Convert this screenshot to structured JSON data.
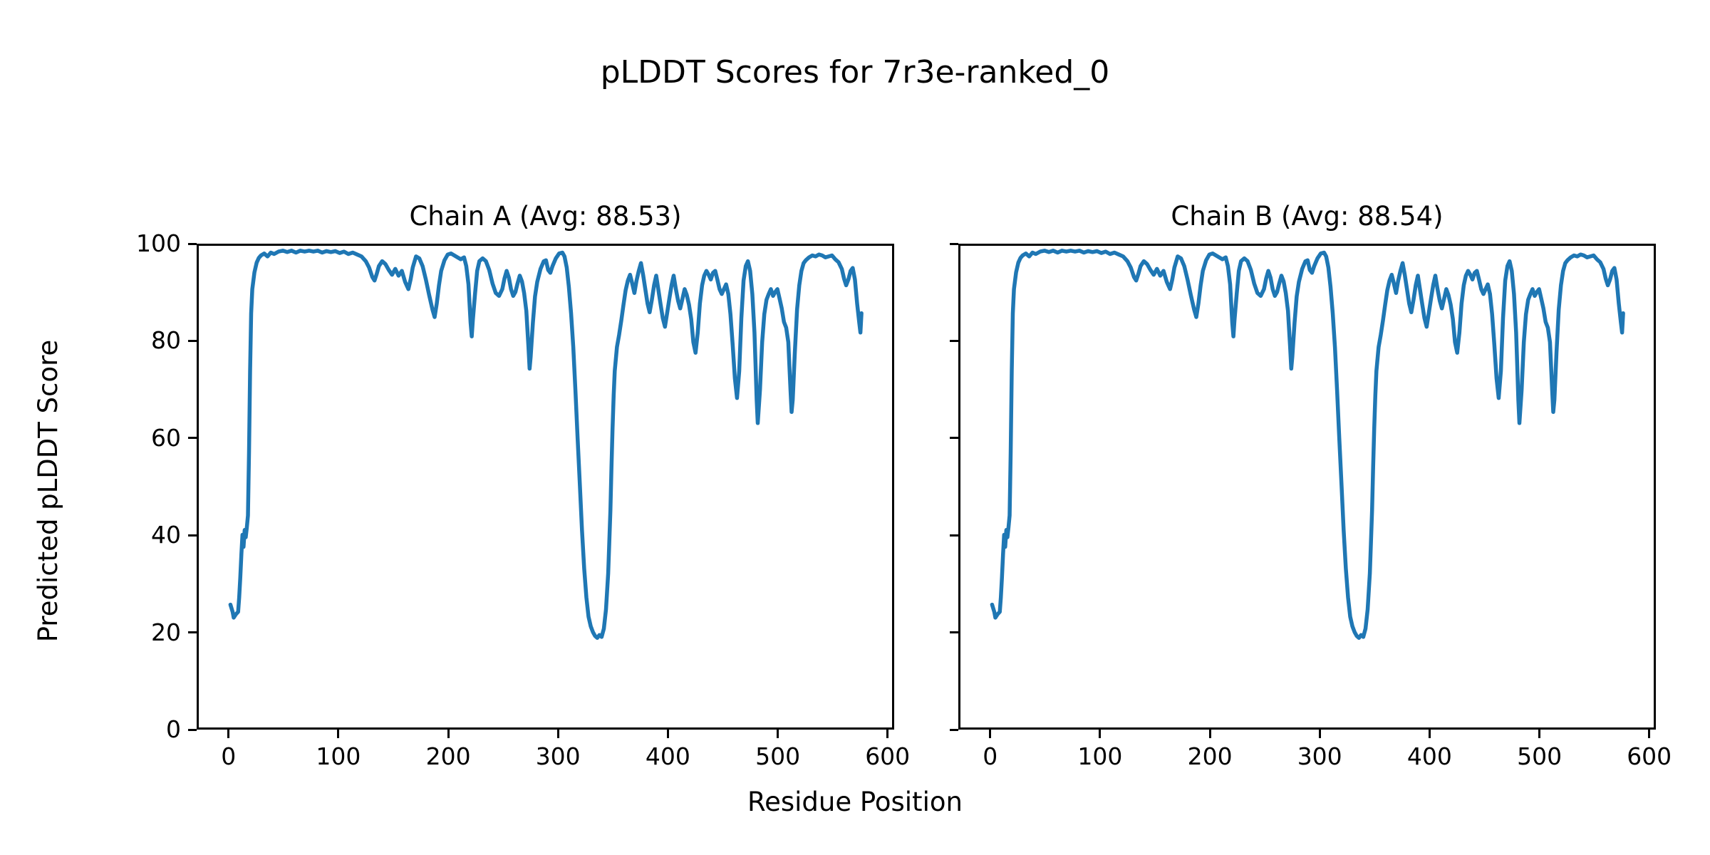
{
  "figure": {
    "title": "pLDDT Scores for 7r3e-ranked_0",
    "background_color": "#ffffff",
    "text_color": "#000000"
  },
  "chart_data": {
    "type": "line",
    "title": "pLDDT Scores for 7r3e-ranked_0",
    "xlabel": "Residue Position",
    "ylabel": "Predicted pLDDT Score",
    "xticks": [
      0,
      100,
      200,
      300,
      400,
      500,
      600
    ],
    "yticks": [
      0,
      20,
      40,
      60,
      80,
      100
    ],
    "xlim": [
      -29,
      606
    ],
    "ylim": [
      0,
      100
    ],
    "grid": false,
    "legend": "none",
    "line_color": "#1f77b4",
    "subplots": [
      {
        "title": "Chain A (Avg: 88.53)",
        "series_name": "Chain A",
        "avg": 88.53
      },
      {
        "title": "Chain B (Avg: 88.54)",
        "series_name": "Chain B",
        "avg": 88.54
      }
    ],
    "note_both_chains_identical_trace": true,
    "points": [
      [
        0,
        25.5
      ],
      [
        2,
        24
      ],
      [
        3,
        22.8
      ],
      [
        5,
        23.5
      ],
      [
        7,
        24
      ],
      [
        8,
        27
      ],
      [
        9,
        31
      ],
      [
        10,
        36
      ],
      [
        11,
        40
      ],
      [
        12,
        37.5
      ],
      [
        13,
        41
      ],
      [
        14,
        39.5
      ],
      [
        15,
        41.5
      ],
      [
        16,
        44
      ],
      [
        17,
        57
      ],
      [
        18,
        74
      ],
      [
        19,
        86
      ],
      [
        20,
        91
      ],
      [
        22,
        94.5
      ],
      [
        24,
        96.5
      ],
      [
        26,
        97.5
      ],
      [
        28,
        98
      ],
      [
        31,
        98.4
      ],
      [
        34,
        97.8
      ],
      [
        37,
        98.6
      ],
      [
        40,
        98.3
      ],
      [
        44,
        98.8
      ],
      [
        48,
        99
      ],
      [
        52,
        98.7
      ],
      [
        56,
        99
      ],
      [
        60,
        98.6
      ],
      [
        64,
        99
      ],
      [
        68,
        98.8
      ],
      [
        72,
        99
      ],
      [
        76,
        98.8
      ],
      [
        80,
        99
      ],
      [
        84,
        98.6
      ],
      [
        88,
        98.9
      ],
      [
        92,
        98.7
      ],
      [
        96,
        98.9
      ],
      [
        100,
        98.5
      ],
      [
        104,
        98.8
      ],
      [
        108,
        98.3
      ],
      [
        112,
        98.6
      ],
      [
        116,
        98.2
      ],
      [
        120,
        97.8
      ],
      [
        124,
        96.8
      ],
      [
        127,
        95.5
      ],
      [
        130,
        93.5
      ],
      [
        132,
        92.8
      ],
      [
        134,
        94.2
      ],
      [
        136,
        95.8
      ],
      [
        139,
        96.8
      ],
      [
        142,
        96.2
      ],
      [
        145,
        95
      ],
      [
        148,
        94
      ],
      [
        151,
        95.2
      ],
      [
        154,
        93.8
      ],
      [
        157,
        94.8
      ],
      [
        160,
        92.5
      ],
      [
        163,
        91
      ],
      [
        165,
        93
      ],
      [
        167,
        95.5
      ],
      [
        170,
        97.8
      ],
      [
        173,
        97.4
      ],
      [
        176,
        95.8
      ],
      [
        179,
        93
      ],
      [
        182,
        89.8
      ],
      [
        185,
        86.8
      ],
      [
        187,
        85.2
      ],
      [
        189,
        88
      ],
      [
        191,
        91.8
      ],
      [
        193,
        94.8
      ],
      [
        196,
        97
      ],
      [
        199,
        98.2
      ],
      [
        202,
        98.4
      ],
      [
        205,
        98
      ],
      [
        208,
        97.6
      ],
      [
        211,
        97.2
      ],
      [
        214,
        97.6
      ],
      [
        216,
        95.8
      ],
      [
        218,
        92
      ],
      [
        220,
        84
      ],
      [
        221,
        81.2
      ],
      [
        222,
        84.5
      ],
      [
        224,
        90
      ],
      [
        226,
        94.8
      ],
      [
        228,
        96.8
      ],
      [
        231,
        97.4
      ],
      [
        234,
        96.8
      ],
      [
        237,
        95
      ],
      [
        240,
        92.2
      ],
      [
        243,
        90.2
      ],
      [
        246,
        89.6
      ],
      [
        249,
        91
      ],
      [
        251,
        93.2
      ],
      [
        253,
        94.8
      ],
      [
        255,
        93.4
      ],
      [
        257,
        91
      ],
      [
        259,
        89.6
      ],
      [
        261,
        90.4
      ],
      [
        263,
        92.2
      ],
      [
        265,
        93.8
      ],
      [
        267,
        92.6
      ],
      [
        269,
        90.2
      ],
      [
        271,
        86.5
      ],
      [
        273,
        79
      ],
      [
        274,
        74.5
      ],
      [
        275,
        77
      ],
      [
        277,
        84
      ],
      [
        279,
        89.5
      ],
      [
        281,
        92.5
      ],
      [
        284,
        95.2
      ],
      [
        287,
        96.8
      ],
      [
        289,
        97
      ],
      [
        291,
        95
      ],
      [
        293,
        94.4
      ],
      [
        295,
        95.8
      ],
      [
        298,
        97.4
      ],
      [
        301,
        98.4
      ],
      [
        304,
        98.6
      ],
      [
        306,
        97.8
      ],
      [
        308,
        95.5
      ],
      [
        310,
        91.5
      ],
      [
        312,
        86
      ],
      [
        314,
        79
      ],
      [
        316,
        70
      ],
      [
        318,
        60
      ],
      [
        320,
        50.5
      ],
      [
        322,
        41
      ],
      [
        324,
        33
      ],
      [
        326,
        27
      ],
      [
        328,
        23
      ],
      [
        330,
        21
      ],
      [
        332,
        19.8
      ],
      [
        334,
        19
      ],
      [
        336,
        18.6
      ],
      [
        338,
        19.2
      ],
      [
        340,
        18.8
      ],
      [
        342,
        20.5
      ],
      [
        344,
        24.5
      ],
      [
        346,
        32
      ],
      [
        348,
        45
      ],
      [
        349,
        54
      ],
      [
        350,
        62
      ],
      [
        351,
        69
      ],
      [
        352,
        74
      ],
      [
        354,
        79
      ],
      [
        356,
        81.5
      ],
      [
        358,
        84.5
      ],
      [
        360,
        87.8
      ],
      [
        362,
        90.8
      ],
      [
        364,
        92.8
      ],
      [
        366,
        94
      ],
      [
        368,
        92.2
      ],
      [
        370,
        90.2
      ],
      [
        372,
        92.8
      ],
      [
        374,
        94.8
      ],
      [
        376,
        96.4
      ],
      [
        378,
        94
      ],
      [
        380,
        91
      ],
      [
        382,
        88
      ],
      [
        384,
        86.2
      ],
      [
        386,
        88.8
      ],
      [
        388,
        91.8
      ],
      [
        390,
        93.8
      ],
      [
        392,
        90.8
      ],
      [
        394,
        87.8
      ],
      [
        396,
        85
      ],
      [
        398,
        83.2
      ],
      [
        400,
        86
      ],
      [
        402,
        89
      ],
      [
        404,
        91.8
      ],
      [
        406,
        93.8
      ],
      [
        408,
        91
      ],
      [
        410,
        88.6
      ],
      [
        412,
        87
      ],
      [
        414,
        89
      ],
      [
        416,
        91
      ],
      [
        418,
        89.8
      ],
      [
        420,
        87.8
      ],
      [
        422,
        84.8
      ],
      [
        424,
        80
      ],
      [
        426,
        77.8
      ],
      [
        428,
        82
      ],
      [
        430,
        88
      ],
      [
        432,
        91.8
      ],
      [
        434,
        93.8
      ],
      [
        436,
        94.8
      ],
      [
        438,
        94
      ],
      [
        440,
        93
      ],
      [
        442,
        94.4
      ],
      [
        444,
        94.8
      ],
      [
        446,
        93
      ],
      [
        448,
        91
      ],
      [
        450,
        90
      ],
      [
        452,
        91
      ],
      [
        454,
        92
      ],
      [
        456,
        90
      ],
      [
        458,
        85.8
      ],
      [
        460,
        79.5
      ],
      [
        462,
        72.5
      ],
      [
        464,
        68.4
      ],
      [
        466,
        74
      ],
      [
        468,
        85
      ],
      [
        470,
        92.8
      ],
      [
        472,
        95.8
      ],
      [
        474,
        96.8
      ],
      [
        476,
        94.8
      ],
      [
        478,
        90
      ],
      [
        480,
        82
      ],
      [
        481,
        75
      ],
      [
        482,
        68
      ],
      [
        483,
        63.2
      ],
      [
        485,
        70
      ],
      [
        487,
        80
      ],
      [
        489,
        85.8
      ],
      [
        491,
        88.8
      ],
      [
        493,
        90
      ],
      [
        495,
        91
      ],
      [
        497,
        89.6
      ],
      [
        499,
        90.4
      ],
      [
        501,
        91
      ],
      [
        503,
        89
      ],
      [
        505,
        87
      ],
      [
        507,
        84.2
      ],
      [
        509,
        83
      ],
      [
        511,
        80
      ],
      [
        513,
        70
      ],
      [
        514,
        65.5
      ],
      [
        515,
        68
      ],
      [
        517,
        78
      ],
      [
        519,
        86.8
      ],
      [
        521,
        91.8
      ],
      [
        523,
        94.8
      ],
      [
        525,
        96.4
      ],
      [
        527,
        97
      ],
      [
        530,
        97.6
      ],
      [
        533,
        98
      ],
      [
        536,
        97.8
      ],
      [
        539,
        98.2
      ],
      [
        542,
        98
      ],
      [
        545,
        97.6
      ],
      [
        548,
        97.8
      ],
      [
        551,
        98
      ],
      [
        554,
        97.2
      ],
      [
        557,
        96.6
      ],
      [
        560,
        95.2
      ],
      [
        562,
        93.2
      ],
      [
        564,
        91.8
      ],
      [
        566,
        93
      ],
      [
        568,
        94.8
      ],
      [
        570,
        95.4
      ],
      [
        572,
        93
      ],
      [
        574,
        88
      ],
      [
        576,
        84
      ],
      [
        577,
        82
      ],
      [
        578,
        86
      ]
    ]
  }
}
